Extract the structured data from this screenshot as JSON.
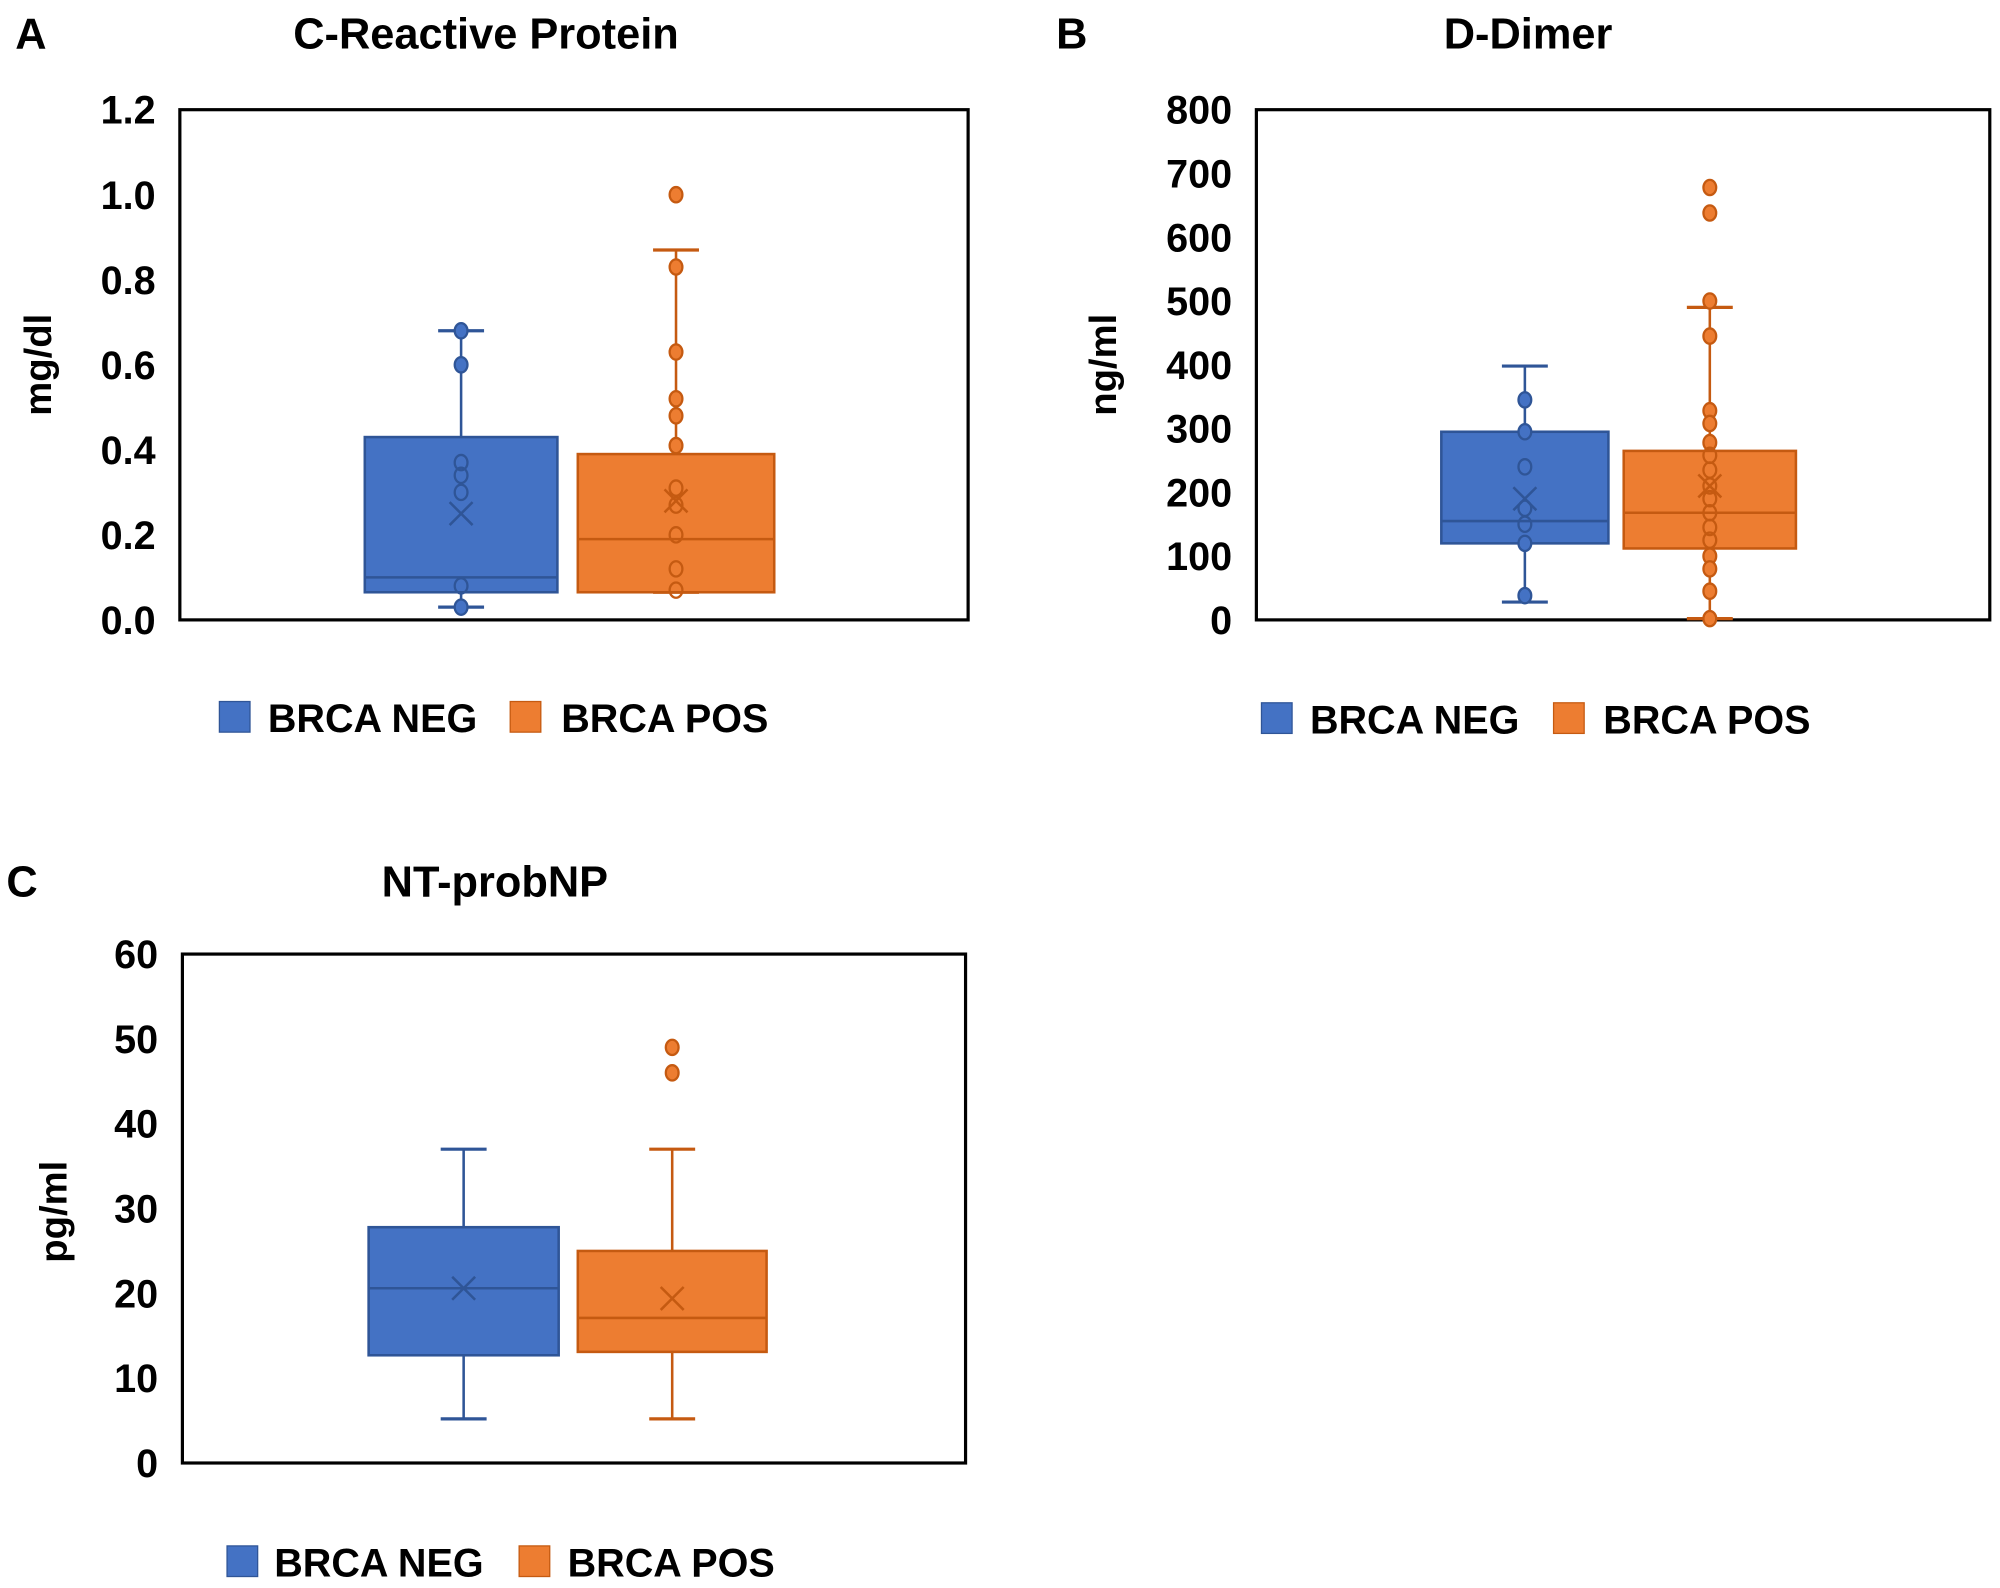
{
  "colors": {
    "neg": "#4472C4",
    "neg_dark": "#2F5597",
    "pos": "#ED7D31",
    "pos_dark": "#C55A11"
  },
  "chart_data": [
    {
      "panel": "A",
      "type": "box",
      "title": "C-Reactive Protein",
      "ylabel": "mg/dl",
      "ylim": [
        0,
        1.2
      ],
      "yticks": [
        "0.0",
        "0.2",
        "0.4",
        "0.6",
        "0.8",
        "1.0",
        "1.2"
      ],
      "grid": false,
      "legend": "bottom",
      "series": [
        {
          "name": "BRCA NEG",
          "whisker_low": 0.03,
          "q1": 0.065,
          "median": 0.1,
          "q3": 0.43,
          "whisker_high": 0.68,
          "mean": 0.25,
          "points": [
            0.68,
            0.6,
            0.37,
            0.34,
            0.3,
            0.08,
            0.03
          ]
        },
        {
          "name": "BRCA POS",
          "whisker_low": 0.065,
          "q1": 0.065,
          "median": 0.19,
          "q3": 0.39,
          "whisker_high": 0.87,
          "mean": 0.28,
          "points": [
            1.0,
            0.83,
            0.63,
            0.52,
            0.48,
            0.41,
            0.31,
            0.27,
            0.2,
            0.12,
            0.07
          ]
        }
      ]
    },
    {
      "panel": "B",
      "type": "box",
      "title": "D-Dimer",
      "ylabel": "ng/ml",
      "ylim": [
        0,
        800
      ],
      "yticks": [
        "0",
        "100",
        "200",
        "300",
        "400",
        "500",
        "600",
        "700",
        "800"
      ],
      "grid": false,
      "legend": "bottom",
      "series": [
        {
          "name": "BRCA NEG",
          "whisker_low": 28,
          "q1": 120,
          "median": 155,
          "q3": 295,
          "whisker_high": 398,
          "mean": 190,
          "points": [
            345,
            295,
            240,
            175,
            150,
            120,
            38
          ]
        },
        {
          "name": "BRCA POS",
          "whisker_low": 2,
          "q1": 112,
          "median": 168,
          "q3": 265,
          "whisker_high": 490,
          "mean": 210,
          "points": [
            678,
            638,
            500,
            445,
            328,
            308,
            278,
            258,
            235,
            210,
            190,
            168,
            145,
            125,
            100,
            80,
            45,
            2
          ]
        }
      ]
    },
    {
      "panel": "C",
      "type": "box",
      "title": "NT-probNP",
      "ylabel": "pg/ml",
      "ylim": [
        0,
        60
      ],
      "yticks": [
        "0",
        "10",
        "20",
        "30",
        "40",
        "50",
        "60"
      ],
      "grid": false,
      "legend": "bottom",
      "series": [
        {
          "name": "BRCA NEG",
          "whisker_low": 5.2,
          "q1": 12.7,
          "median": 20.6,
          "q3": 27.8,
          "whisker_high": 37,
          "mean": 20.6,
          "points": []
        },
        {
          "name": "BRCA POS",
          "whisker_low": 5.2,
          "q1": 13.1,
          "median": 17.1,
          "q3": 25.0,
          "whisker_high": 37,
          "mean": 19.4,
          "points": [
            49,
            46
          ]
        }
      ]
    }
  ]
}
